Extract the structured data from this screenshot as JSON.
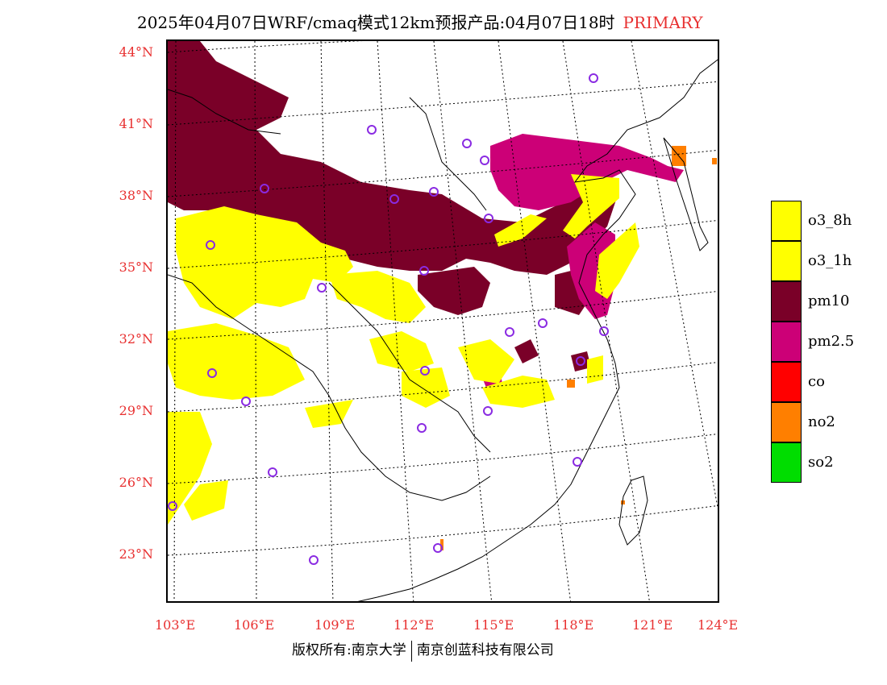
{
  "header": {
    "title": "2025年04月07日WRF/cmaq模式12km预报产品:04月07日18时",
    "tag": "PRIMARY",
    "tag_color": "#e83030"
  },
  "axes": {
    "lat_labels": [
      "44°N",
      "41°N",
      "38°N",
      "35°N",
      "32°N",
      "29°N",
      "26°N",
      "23°N"
    ],
    "lon_labels": [
      "103°E",
      "106°E",
      "109°E",
      "112°E",
      "115°E",
      "118°E",
      "121°E",
      "124°E"
    ],
    "label_color": "#e83030"
  },
  "legend": {
    "items": [
      {
        "label": "o3_8h",
        "color": "#ffff00"
      },
      {
        "label": "o3_1h",
        "color": "#ffff00"
      },
      {
        "label": "pm10",
        "color": "#7a0028"
      },
      {
        "label": "pm2.5",
        "color": "#cc0077"
      },
      {
        "label": "co",
        "color": "#ff0000"
      },
      {
        "label": "no2",
        "color": "#ff7f00"
      },
      {
        "label": "so2",
        "color": "#00dd00"
      }
    ]
  },
  "footer": {
    "left": "版权所有:南京大学",
    "right": "南京创蓝科技有限公司"
  },
  "map": {
    "station_marker_color": "#8a2be2",
    "grid_style": "dotted"
  }
}
